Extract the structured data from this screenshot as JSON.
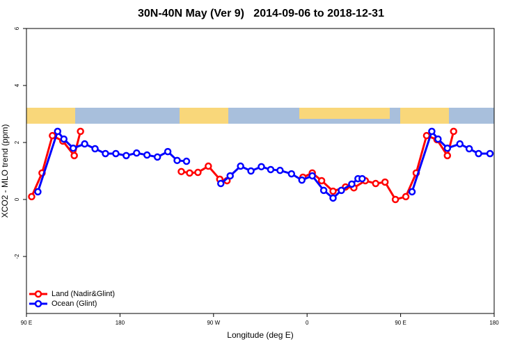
{
  "chart_data": {
    "type": "line",
    "title": "30N-40N May (Ver 9)   2014-09-06 to 2018-12-31",
    "x_label": "Longitude (deg E)",
    "y_label": "XCO2 - MLO trend (ppm)",
    "xlim": [
      90,
      540
    ],
    "ylim": [
      -4,
      6
    ],
    "xticks": [
      {
        "value": 90,
        "label": "90 E"
      },
      {
        "value": 180,
        "label": "180"
      },
      {
        "value": 270,
        "label": "90 W"
      },
      {
        "value": 360,
        "label": "0"
      },
      {
        "value": 450,
        "label": "90 E"
      },
      {
        "value": 540,
        "label": "180"
      }
    ],
    "yticks": [
      -2,
      0,
      2,
      4,
      6
    ],
    "legend": "bottom-left",
    "series": [
      {
        "name": "Land (Nadir&Glint)",
        "color": "#ff0000",
        "x": [
          95,
          105,
          115,
          125,
          136,
          142,
          190,
          239,
          247,
          255,
          265,
          276,
          283,
          320,
          356,
          365,
          374,
          385,
          397,
          405,
          416,
          426,
          435,
          445,
          455,
          465,
          475,
          485,
          495,
          501
        ],
        "values": [
          0.1,
          0.93,
          2.24,
          2.05,
          1.54,
          2.39,
          null,
          0.98,
          0.93,
          0.95,
          1.17,
          0.71,
          0.66,
          null,
          0.78,
          0.93,
          0.66,
          0.29,
          0.44,
          0.41,
          0.66,
          0.56,
          0.61,
          0.0,
          0.1,
          0.93,
          2.24,
          2.1,
          1.54,
          2.39
        ]
      },
      {
        "name": "Ocean (Glint)",
        "color": "#0000ff",
        "x": [
          101,
          120,
          126,
          135,
          146,
          156,
          166,
          176,
          186,
          196,
          206,
          216,
          226,
          235,
          244,
          260,
          277,
          286,
          296,
          306,
          316,
          325,
          334,
          345,
          355,
          365,
          376,
          385,
          393,
          403,
          409,
          413,
          440,
          461,
          480,
          486,
          495,
          507,
          516,
          525,
          536
        ],
        "values": [
          0.27,
          2.39,
          2.12,
          1.8,
          1.95,
          1.78,
          1.61,
          1.61,
          1.54,
          1.63,
          1.56,
          1.49,
          1.68,
          1.37,
          1.34,
          null,
          0.56,
          0.83,
          1.17,
          1.0,
          1.15,
          1.05,
          1.02,
          0.9,
          0.68,
          0.83,
          0.32,
          0.05,
          0.32,
          0.54,
          0.73,
          0.73,
          null,
          0.27,
          2.39,
          2.12,
          1.8,
          1.95,
          1.78,
          1.61,
          1.61
        ]
      }
    ]
  }
}
